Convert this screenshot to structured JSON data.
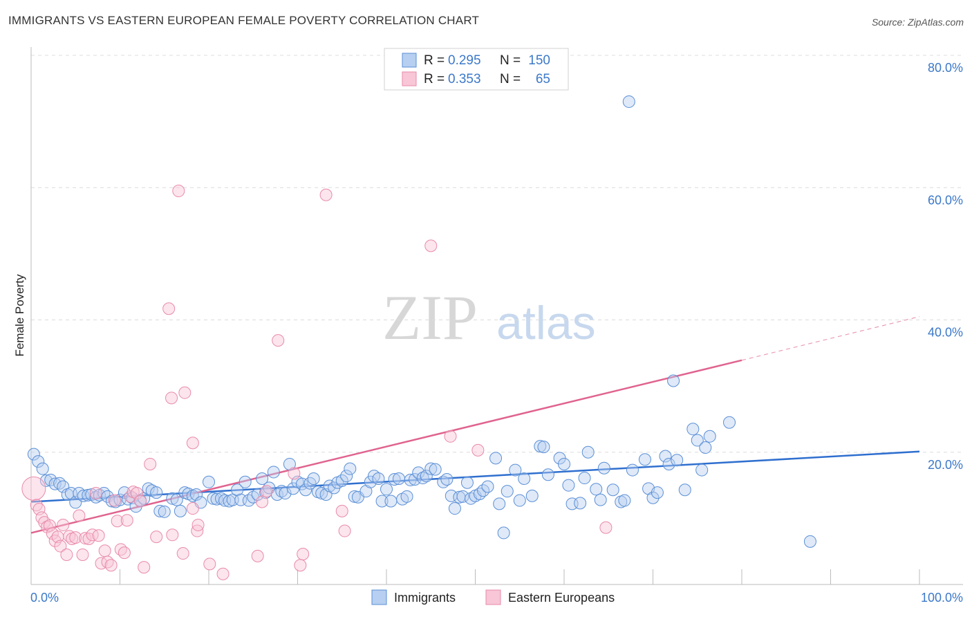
{
  "title": "IMMIGRANTS VS EASTERN EUROPEAN FEMALE POVERTY CORRELATION CHART",
  "source": "Source: ZipAtlas.com",
  "watermark": {
    "zip": "ZIP",
    "atlas": "atlas"
  },
  "legend": {
    "r_label": "R =",
    "n_label": "N =",
    "rows": [
      {
        "r": "0.295",
        "n": "150"
      },
      {
        "r": "0.353",
        "n": "65"
      }
    ]
  },
  "bottom_legend": [
    "Immigrants",
    "Eastern Europeans"
  ],
  "chart_data": {
    "type": "scatter",
    "title": "IMMIGRANTS VS EASTERN EUROPEAN FEMALE POVERTY CORRELATION CHART",
    "xlabel": "",
    "ylabel": "Female Poverty",
    "xlim": [
      0,
      100
    ],
    "ylim": [
      0,
      80
    ],
    "x_tick_labels": [
      "0.0%",
      "100.0%"
    ],
    "y_ticks": [
      20,
      40,
      60,
      80
    ],
    "y_tick_labels": [
      "20.0%",
      "40.0%",
      "60.0%",
      "80.0%"
    ],
    "colors": {
      "Immigrants": "#3b78c9",
      "Eastern Europeans": "#e0638f"
    },
    "series": [
      {
        "name": "Immigrants",
        "trend": {
          "x0": 0,
          "y0": 12.5,
          "x1": 100,
          "y1": 20.1
        },
        "points": [
          [
            0.3,
            19.7
          ],
          [
            0.8,
            18.6
          ],
          [
            1.3,
            17.5
          ],
          [
            1.7,
            15.7
          ],
          [
            2.2,
            15.8
          ],
          [
            2.7,
            15.2
          ],
          [
            3.2,
            15.3
          ],
          [
            3.6,
            14.8
          ],
          [
            4.1,
            13.6
          ],
          [
            4.5,
            13.8
          ],
          [
            5.0,
            12.4
          ],
          [
            5.4,
            13.8
          ],
          [
            5.9,
            13.4
          ],
          [
            6.4,
            13.5
          ],
          [
            6.8,
            13.6
          ],
          [
            7.3,
            13.2
          ],
          [
            7.7,
            13.5
          ],
          [
            8.2,
            13.8
          ],
          [
            8.6,
            13.3
          ],
          [
            9.1,
            12.6
          ],
          [
            9.5,
            12.5
          ],
          [
            10.0,
            12.8
          ],
          [
            10.5,
            13.9
          ],
          [
            10.9,
            12.9
          ],
          [
            11.4,
            13.1
          ],
          [
            11.8,
            11.8
          ],
          [
            12.3,
            12.7
          ],
          [
            12.7,
            13.0
          ],
          [
            13.2,
            14.5
          ],
          [
            13.6,
            14.2
          ],
          [
            14.1,
            13.9
          ],
          [
            14.5,
            11.1
          ],
          [
            15.0,
            11.0
          ],
          [
            15.9,
            13.0
          ],
          [
            16.4,
            12.8
          ],
          [
            16.8,
            11.1
          ],
          [
            17.3,
            13.9
          ],
          [
            17.7,
            13.7
          ],
          [
            18.2,
            13.4
          ],
          [
            18.6,
            13.6
          ],
          [
            19.1,
            12.4
          ],
          [
            20.0,
            15.5
          ],
          [
            20.5,
            13.0
          ],
          [
            20.9,
            12.9
          ],
          [
            21.4,
            13.0
          ],
          [
            21.8,
            12.7
          ],
          [
            22.3,
            12.6
          ],
          [
            22.7,
            12.8
          ],
          [
            23.2,
            14.3
          ],
          [
            23.6,
            12.8
          ],
          [
            24.1,
            15.5
          ],
          [
            24.5,
            12.7
          ],
          [
            25.0,
            13.2
          ],
          [
            25.5,
            13.6
          ],
          [
            26.0,
            16.0
          ],
          [
            26.4,
            13.9
          ],
          [
            26.8,
            14.6
          ],
          [
            27.3,
            17.0
          ],
          [
            27.7,
            13.6
          ],
          [
            28.2,
            14.1
          ],
          [
            28.6,
            13.8
          ],
          [
            29.1,
            18.2
          ],
          [
            29.5,
            14.5
          ],
          [
            30.0,
            15.5
          ],
          [
            30.5,
            15.2
          ],
          [
            30.9,
            14.3
          ],
          [
            31.4,
            15.3
          ],
          [
            31.8,
            16.0
          ],
          [
            32.3,
            14.0
          ],
          [
            32.7,
            13.8
          ],
          [
            33.2,
            13.6
          ],
          [
            33.6,
            14.9
          ],
          [
            34.1,
            14.6
          ],
          [
            34.5,
            15.4
          ],
          [
            35.0,
            15.7
          ],
          [
            35.5,
            16.4
          ],
          [
            35.9,
            17.5
          ],
          [
            36.4,
            13.3
          ],
          [
            36.8,
            13.2
          ],
          [
            37.7,
            14.1
          ],
          [
            38.2,
            15.5
          ],
          [
            38.6,
            16.4
          ],
          [
            39.1,
            16.0
          ],
          [
            39.5,
            12.6
          ],
          [
            40.0,
            14.4
          ],
          [
            40.5,
            12.6
          ],
          [
            40.9,
            15.9
          ],
          [
            41.4,
            16.0
          ],
          [
            41.8,
            12.9
          ],
          [
            42.3,
            13.3
          ],
          [
            42.7,
            15.8
          ],
          [
            43.2,
            15.9
          ],
          [
            43.6,
            16.9
          ],
          [
            44.1,
            16.1
          ],
          [
            44.5,
            16.4
          ],
          [
            45.0,
            17.5
          ],
          [
            45.5,
            17.4
          ],
          [
            46.4,
            15.5
          ],
          [
            46.8,
            15.9
          ],
          [
            47.3,
            13.4
          ],
          [
            47.7,
            11.5
          ],
          [
            48.2,
            13.2
          ],
          [
            48.6,
            13.3
          ],
          [
            49.1,
            15.4
          ],
          [
            49.5,
            13.0
          ],
          [
            50.0,
            13.4
          ],
          [
            50.5,
            13.7
          ],
          [
            50.9,
            14.2
          ],
          [
            51.4,
            14.8
          ],
          [
            52.3,
            19.1
          ],
          [
            52.7,
            12.2
          ],
          [
            53.2,
            7.8
          ],
          [
            53.6,
            14.1
          ],
          [
            54.5,
            17.3
          ],
          [
            55.0,
            12.7
          ],
          [
            55.5,
            16.0
          ],
          [
            56.4,
            13.4
          ],
          [
            57.3,
            20.9
          ],
          [
            57.7,
            20.8
          ],
          [
            58.2,
            16.6
          ],
          [
            59.5,
            19.1
          ],
          [
            60.0,
            18.2
          ],
          [
            60.5,
            15.0
          ],
          [
            60.9,
            12.2
          ],
          [
            61.8,
            12.3
          ],
          [
            62.3,
            16.1
          ],
          [
            62.7,
            20.0
          ],
          [
            63.6,
            14.4
          ],
          [
            64.1,
            12.8
          ],
          [
            64.5,
            17.6
          ],
          [
            65.5,
            14.3
          ],
          [
            66.4,
            12.5
          ],
          [
            66.8,
            12.7
          ],
          [
            67.7,
            17.3
          ],
          [
            69.1,
            18.9
          ],
          [
            69.5,
            14.5
          ],
          [
            70.0,
            13.1
          ],
          [
            70.5,
            13.9
          ],
          [
            71.4,
            19.4
          ],
          [
            71.8,
            18.2
          ],
          [
            72.7,
            18.8
          ],
          [
            73.6,
            14.3
          ],
          [
            74.5,
            23.5
          ],
          [
            75.0,
            21.8
          ],
          [
            75.5,
            17.3
          ],
          [
            75.9,
            20.7
          ],
          [
            76.4,
            22.4
          ],
          [
            78.6,
            24.5
          ],
          [
            67.3,
            73.0
          ],
          [
            72.3,
            30.8
          ],
          [
            87.7,
            6.5
          ]
        ]
      },
      {
        "name": "Eastern Europeans",
        "trend": {
          "x0": 0,
          "y0": 7.8,
          "x1": 80,
          "y1": 33.9,
          "x1_dashed": 100,
          "y1_dashed": 40.5
        },
        "points": [
          [
            0.3,
            14.5
          ],
          [
            0.6,
            12.0
          ],
          [
            0.9,
            11.4
          ],
          [
            1.2,
            10.1
          ],
          [
            1.5,
            9.4
          ],
          [
            1.8,
            8.7
          ],
          [
            2.1,
            8.9
          ],
          [
            2.4,
            7.7
          ],
          [
            2.7,
            6.6
          ],
          [
            3.0,
            7.2
          ],
          [
            3.3,
            5.8
          ],
          [
            3.6,
            9.0
          ],
          [
            4.0,
            4.5
          ],
          [
            4.3,
            7.3
          ],
          [
            4.6,
            6.9
          ],
          [
            5.0,
            7.1
          ],
          [
            5.4,
            10.4
          ],
          [
            5.8,
            4.5
          ],
          [
            6.1,
            7.0
          ],
          [
            6.5,
            6.9
          ],
          [
            6.9,
            7.5
          ],
          [
            7.3,
            13.8
          ],
          [
            7.6,
            7.4
          ],
          [
            7.9,
            3.2
          ],
          [
            8.3,
            5.1
          ],
          [
            8.6,
            3.4
          ],
          [
            9.0,
            2.9
          ],
          [
            9.4,
            12.7
          ],
          [
            9.7,
            9.6
          ],
          [
            10.1,
            5.3
          ],
          [
            10.5,
            4.8
          ],
          [
            10.8,
            9.7
          ],
          [
            11.2,
            13.3
          ],
          [
            11.5,
            14.0
          ],
          [
            11.9,
            13.8
          ],
          [
            12.3,
            12.6
          ],
          [
            12.7,
            2.6
          ],
          [
            13.4,
            18.2
          ],
          [
            14.1,
            7.2
          ],
          [
            15.9,
            7.5
          ],
          [
            17.1,
            4.7
          ],
          [
            18.2,
            11.5
          ],
          [
            18.7,
            8.1
          ],
          [
            20.1,
            3.1
          ],
          [
            21.6,
            1.6
          ],
          [
            25.5,
            4.3
          ],
          [
            26.0,
            12.5
          ],
          [
            27.8,
            36.9
          ],
          [
            29.6,
            16.8
          ],
          [
            30.6,
            4.6
          ],
          [
            30.3,
            2.9
          ],
          [
            35.3,
            8.1
          ],
          [
            35.0,
            11.1
          ],
          [
            16.6,
            59.5
          ],
          [
            33.2,
            58.9
          ],
          [
            15.5,
            41.7
          ],
          [
            15.8,
            28.2
          ],
          [
            17.3,
            29.0
          ],
          [
            18.2,
            21.4
          ],
          [
            45.0,
            51.2
          ],
          [
            47.2,
            22.4
          ],
          [
            50.3,
            20.3
          ],
          [
            64.7,
            8.6
          ],
          [
            18.8,
            9.0
          ],
          [
            26.5,
            14.1
          ]
        ]
      }
    ]
  }
}
